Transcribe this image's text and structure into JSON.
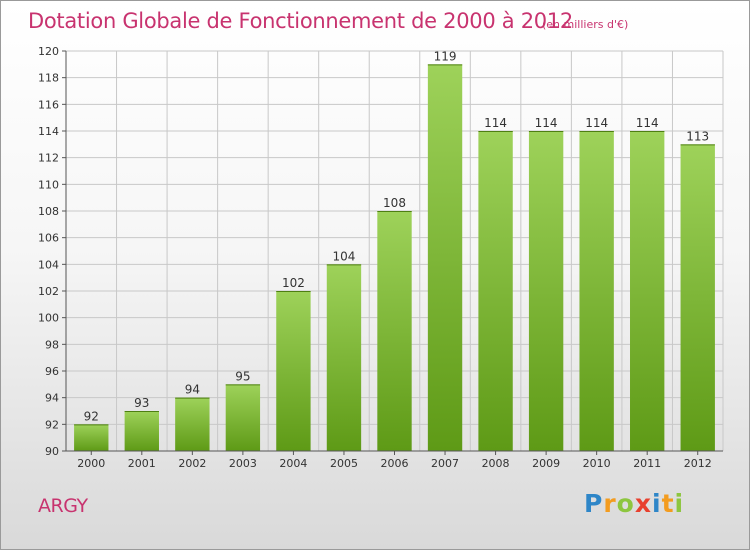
{
  "title": "Dotation Globale de Fonctionnement de 2000 à 2012",
  "unit_label": "(en milliers d'€)",
  "commune": "ARGY",
  "logo": {
    "text": "Proxiti",
    "letters": [
      {
        "ch": "P",
        "color": "#2e86c8"
      },
      {
        "ch": "r",
        "color": "#f39c1f"
      },
      {
        "ch": "o",
        "color": "#8dc63f"
      },
      {
        "ch": "x",
        "color": "#e8402e"
      },
      {
        "ch": "i",
        "color": "#2e86c8"
      },
      {
        "ch": "t",
        "color": "#f39c1f"
      },
      {
        "ch": "i",
        "color": "#8dc63f"
      }
    ]
  },
  "colors": {
    "title": "#c8336f",
    "bar_top": "#9ed25a",
    "bar_bottom": "#5e9a16",
    "grid": "#c8c8c8",
    "text": "#333333"
  },
  "chart_data": {
    "type": "bar",
    "categories": [
      "2000",
      "2001",
      "2002",
      "2003",
      "2004",
      "2005",
      "2006",
      "2007",
      "2008",
      "2009",
      "2010",
      "2011",
      "2012"
    ],
    "values": [
      92,
      93,
      94,
      95,
      102,
      104,
      108,
      119,
      114,
      114,
      114,
      114,
      113
    ],
    "ylim": [
      90,
      120
    ],
    "yticks": [
      90,
      92,
      94,
      96,
      98,
      100,
      102,
      104,
      106,
      108,
      110,
      112,
      114,
      116,
      118,
      120
    ],
    "grid": true,
    "xlabel": "",
    "ylabel": ""
  }
}
